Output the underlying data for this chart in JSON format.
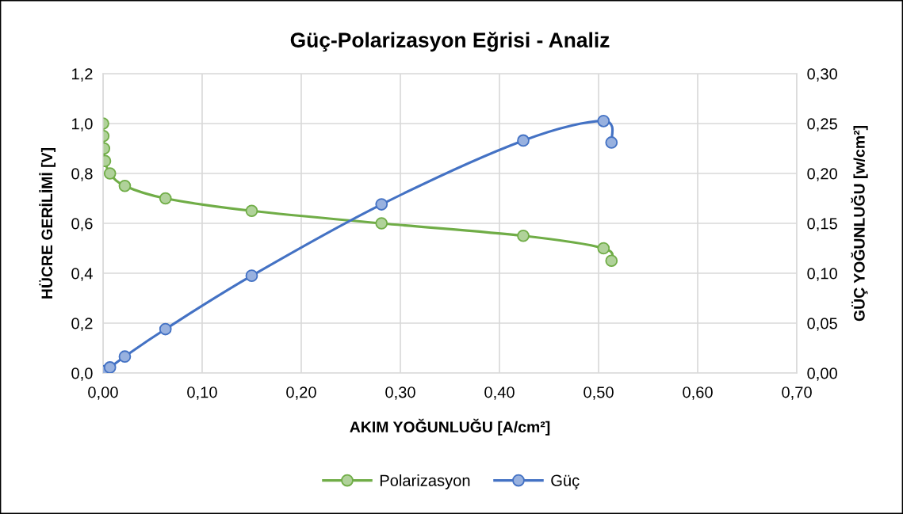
{
  "chart_data": {
    "type": "line",
    "title": "Güç-Polarizasyon Eğrisi - Analiz",
    "xlabel": "AKIM YOĞUNLUĞU [A/cm²]",
    "ylabel": "HÜCRE GERİLİMİ [V]",
    "y2label": "GÜÇ YOĞUNLUĞU [w/cm²]",
    "series": [
      {
        "name": "Polarizasyon",
        "color": "#70ad47",
        "x": [
          0,
          0.0003,
          0.001,
          0.002,
          0.007,
          0.022,
          0.063,
          0.15,
          0.281,
          0.424,
          0.505,
          0.513
        ],
        "values": [
          1.0,
          0.95,
          0.9,
          0.85,
          0.8,
          0.75,
          0.7,
          0.65,
          0.6,
          0.55,
          0.5,
          0.45
        ]
      },
      {
        "name": "Güç",
        "color": "#4472c4",
        "axis": "y2",
        "x": [
          0,
          0.0003,
          0.001,
          0.002,
          0.007,
          0.022,
          0.063,
          0.15,
          0.281,
          0.424,
          0.505,
          0.513
        ],
        "values": [
          0,
          0.0003,
          0.001,
          0.002,
          0.0056,
          0.0165,
          0.044,
          0.0975,
          0.169,
          0.233,
          0.2525,
          0.231
        ]
      }
    ],
    "xlim": [
      0,
      0.7
    ],
    "xticks": [
      {
        "value": 0,
        "label": "0,00"
      },
      {
        "value": 0.1,
        "label": "0,10"
      },
      {
        "value": 0.2,
        "label": "0,20"
      },
      {
        "value": 0.3,
        "label": "0,30"
      },
      {
        "value": 0.4,
        "label": "0,40"
      },
      {
        "value": 0.5,
        "label": "0,50"
      },
      {
        "value": 0.6,
        "label": "0,60"
      },
      {
        "value": 0.7,
        "label": "0,70"
      }
    ],
    "ylim": [
      0,
      1.2
    ],
    "yticks": [
      {
        "value": 0,
        "label": "0,0"
      },
      {
        "value": 0.2,
        "label": "0,2"
      },
      {
        "value": 0.4,
        "label": "0,4"
      },
      {
        "value": 0.6,
        "label": "0,6"
      },
      {
        "value": 0.8,
        "label": "0,8"
      },
      {
        "value": 1.0,
        "label": "1,0"
      },
      {
        "value": 1.2,
        "label": "1,2"
      }
    ],
    "y2lim": [
      0,
      0.3
    ],
    "y2ticks": [
      {
        "value": 0,
        "label": "0,00"
      },
      {
        "value": 0.05,
        "label": "0,05"
      },
      {
        "value": 0.1,
        "label": "0,10"
      },
      {
        "value": 0.15,
        "label": "0,15"
      },
      {
        "value": 0.2,
        "label": "0,20"
      },
      {
        "value": 0.25,
        "label": "0,25"
      },
      {
        "value": 0.3,
        "label": "0,30"
      }
    ],
    "grid": true,
    "legend": "bottom",
    "marker": "circle",
    "line_style": "solid"
  }
}
